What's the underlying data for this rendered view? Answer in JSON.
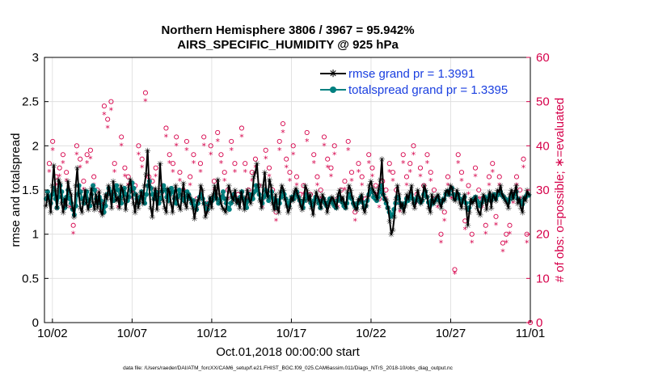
{
  "chart_data": {
    "type": "line",
    "title_line1": "Northern Hemisphere 3806 / 3967 = 95.942%",
    "title_line2": "AIRS_SPECIFIC_HUMIDITY @ 925 hPa",
    "ylabel_left": "rmse and totalspread",
    "ylabel_right": "# of obs: o=possible; ∗=evaluated",
    "xlabel": "Oct.01,2018 00:00:00 start",
    "footer": "data file: /Users/raeder/DAI/ATM_forcXX/CAM6_setup/f.e21.FHIST_BGC.f09_025.CAM6assim.011/Diags_NTrS_2018-10/obs_diag_output.nc",
    "x_tick_labels": [
      "10/02",
      "10/07",
      "10/12",
      "10/17",
      "10/22",
      "10/27",
      "11/01"
    ],
    "x_tick_days": [
      1,
      6,
      11,
      16,
      21,
      26,
      31
    ],
    "xlim": [
      0.5,
      31
    ],
    "ylim_left": [
      0,
      3
    ],
    "ylim_right": [
      0,
      60
    ],
    "y_left_tick_labels": [
      "0",
      "0.5",
      "1",
      "1.5",
      "2",
      "2.5",
      "3"
    ],
    "y_right_tick_labels": [
      "0",
      "10",
      "20",
      "30",
      "40",
      "50",
      "60"
    ],
    "grid": true,
    "legend_position": "top-right",
    "colors": {
      "rmse": "#000000",
      "spread": "#008080",
      "obs": "#d6004a",
      "legend_text": "#1a3fe0"
    },
    "series": [
      {
        "name": "rmse grand pr = 1.3991",
        "color": "#000000",
        "values": [
          1.32,
          1.45,
          1.38,
          1.25,
          1.55,
          1.78,
          1.5,
          1.3,
          1.62,
          1.58,
          1.35,
          1.25,
          1.4,
          1.32,
          1.6,
          1.5,
          1.45,
          1.3,
          1.2,
          1.55,
          1.75,
          1.45,
          1.3,
          1.25,
          1.38,
          1.5,
          1.35,
          1.28,
          1.4,
          1.52,
          1.36,
          1.28,
          1.45,
          1.3,
          1.48,
          1.26,
          1.22,
          1.35,
          1.45,
          1.4,
          1.55,
          1.45,
          1.3,
          1.6,
          1.48,
          1.38,
          1.42,
          1.3,
          1.55,
          1.5,
          1.4,
          1.28,
          1.42,
          1.55,
          1.62,
          1.48,
          1.35,
          1.25,
          1.45,
          1.3,
          1.38,
          1.48,
          1.35,
          1.55,
          1.68,
          1.95,
          1.55,
          1.3,
          1.2,
          1.4,
          1.52,
          1.28,
          1.45,
          1.8,
          1.5,
          1.38,
          1.3,
          1.25,
          1.52,
          1.48,
          1.35,
          1.25,
          1.42,
          1.55,
          1.4,
          1.32,
          1.28,
          1.45,
          1.58,
          1.35,
          1.3,
          1.45,
          1.42,
          1.38,
          1.3,
          1.18,
          1.28,
          1.38,
          1.4,
          1.55,
          1.5,
          1.35,
          1.2,
          1.25,
          1.32,
          1.42,
          1.3,
          1.45,
          1.55,
          1.4,
          1.62,
          1.45,
          1.35,
          1.3,
          1.28,
          1.25,
          1.4,
          1.55,
          1.48,
          1.42,
          1.38,
          1.5,
          1.35,
          1.4,
          1.3,
          1.48,
          1.38,
          1.28,
          1.42,
          1.5,
          1.4,
          1.35,
          1.45,
          1.65,
          1.7,
          1.8,
          1.55,
          1.38,
          1.3,
          1.55,
          1.7,
          1.48,
          1.42,
          1.62,
          1.55,
          1.35,
          1.28,
          1.45,
          1.3,
          1.25,
          1.48,
          1.55,
          1.5,
          1.4,
          1.32,
          1.25,
          1.3,
          1.42,
          1.38,
          1.48,
          1.52,
          1.45,
          1.4,
          1.32,
          1.28,
          1.4,
          1.55,
          1.5,
          1.38,
          1.45,
          1.3,
          1.22,
          1.35,
          1.48,
          1.42,
          1.38,
          1.3,
          1.45,
          1.4,
          1.35,
          1.25,
          1.32,
          1.38,
          1.42,
          1.4,
          1.35,
          1.3,
          1.45,
          1.5,
          1.38,
          1.42,
          1.35,
          1.3,
          1.48,
          1.55,
          1.5,
          1.42,
          1.35,
          1.3,
          1.28,
          1.4,
          1.38,
          1.45,
          1.3,
          1.25,
          1.32,
          1.42,
          1.55,
          1.6,
          1.52,
          1.48,
          1.45,
          1.4,
          1.52,
          1.62,
          1.85,
          1.45,
          1.4,
          1.38,
          1.3,
          1.15,
          1.0,
          1.05,
          1.2,
          1.4,
          1.55,
          1.45,
          1.3,
          1.35,
          1.25,
          1.32,
          1.45,
          1.4,
          1.48,
          1.55,
          1.35,
          1.3,
          1.38,
          1.5,
          1.42,
          1.35,
          1.4,
          1.55,
          1.5,
          1.42,
          1.3,
          1.25,
          1.45,
          1.35,
          1.38,
          1.42,
          1.45,
          1.35,
          1.3,
          1.4,
          1.38,
          1.48,
          1.5,
          1.45,
          1.55,
          1.52,
          1.4,
          1.38,
          1.5,
          1.45,
          1.35,
          1.3,
          1.4,
          1.45,
          1.3,
          1.1,
          1.25,
          1.4,
          1.35,
          1.38,
          1.42,
          1.3,
          1.25,
          1.22,
          1.35,
          1.45,
          1.4,
          1.28,
          1.38,
          1.48,
          1.3,
          1.45,
          1.42,
          1.38,
          1.5,
          1.48,
          1.55,
          1.45,
          1.42,
          1.38,
          1.35,
          1.3,
          1.45,
          1.5,
          1.4,
          1.48,
          1.55,
          1.35,
          1.4,
          1.3,
          1.25,
          1.42,
          1.38,
          1.5,
          1.45
        ]
      },
      {
        "name": "totalspread grand pr = 1.3395",
        "color": "#008080",
        "values": [
          1.4,
          1.48,
          1.42,
          1.35,
          1.45,
          1.52,
          1.4,
          1.3,
          1.42,
          1.55,
          1.48,
          1.38,
          1.3,
          1.42,
          1.5,
          1.4,
          1.35,
          1.28,
          1.22,
          1.32,
          1.45,
          1.55,
          1.48,
          1.4,
          1.35,
          1.42,
          1.48,
          1.38,
          1.32,
          1.45,
          1.55,
          1.5,
          1.4,
          1.35,
          1.42,
          1.38,
          1.3,
          1.25,
          1.32,
          1.45,
          1.52,
          1.48,
          1.4,
          1.38,
          1.45,
          1.55,
          1.5,
          1.42,
          1.35,
          1.48,
          1.52,
          1.45,
          1.38,
          1.42,
          1.5,
          1.58,
          1.52,
          1.45,
          1.4,
          1.35,
          1.42,
          1.48,
          1.4,
          1.35,
          1.45,
          1.55,
          1.6,
          1.52,
          1.45,
          1.4,
          1.48,
          1.42,
          1.35,
          1.4,
          1.48,
          1.55,
          1.5,
          1.42,
          1.38,
          1.45,
          1.52,
          1.48,
          1.4,
          1.35,
          1.42,
          1.5,
          1.45,
          1.4,
          1.38,
          1.42,
          1.48,
          1.45,
          1.4,
          1.35,
          1.38,
          1.32,
          1.28,
          1.35,
          1.42,
          1.45,
          1.4,
          1.35,
          1.3,
          1.28,
          1.35,
          1.4,
          1.38,
          1.42,
          1.45,
          1.4,
          1.35,
          1.38,
          1.42,
          1.48,
          1.4,
          1.35,
          1.3,
          1.28,
          1.35,
          1.42,
          1.45,
          1.4,
          1.38,
          1.35,
          1.42,
          1.48,
          1.4,
          1.36,
          1.3,
          1.38,
          1.45,
          1.42,
          1.4,
          1.48,
          1.55,
          1.5,
          1.45,
          1.4,
          1.35,
          1.42,
          1.5,
          1.45,
          1.38,
          1.42,
          1.48,
          1.4,
          1.35,
          1.3,
          1.38,
          1.35,
          1.42,
          1.48,
          1.45,
          1.4,
          1.35,
          1.32,
          1.38,
          1.42,
          1.4,
          1.45,
          1.48,
          1.42,
          1.38,
          1.35,
          1.3,
          1.38,
          1.45,
          1.42,
          1.4,
          1.35,
          1.32,
          1.38,
          1.42,
          1.4,
          1.35,
          1.3,
          1.38,
          1.4,
          1.35,
          1.32,
          1.36,
          1.4,
          1.38,
          1.35,
          1.32,
          1.3,
          1.38,
          1.42,
          1.4,
          1.36,
          1.32,
          1.3,
          1.35,
          1.42,
          1.45,
          1.4,
          1.35,
          1.32,
          1.3,
          1.35,
          1.38,
          1.42,
          1.36,
          1.3,
          1.32,
          1.38,
          1.45,
          1.5,
          1.48,
          1.42,
          1.4,
          1.38,
          1.42,
          1.48,
          1.55,
          1.45,
          1.4,
          1.35,
          1.3,
          1.25,
          1.2,
          1.22,
          1.28,
          1.35,
          1.42,
          1.4,
          1.35,
          1.32,
          1.3,
          1.35,
          1.4,
          1.38,
          1.42,
          1.45,
          1.4,
          1.35,
          1.38,
          1.42,
          1.4,
          1.36,
          1.38,
          1.45,
          1.48,
          1.42,
          1.36,
          1.32,
          1.38,
          1.35,
          1.38,
          1.4,
          1.42,
          1.38,
          1.35,
          1.38,
          1.4,
          1.45,
          1.48,
          1.45,
          1.5,
          1.52,
          1.45,
          1.4,
          1.42,
          1.45,
          1.4,
          1.36,
          1.38,
          1.42,
          1.35,
          1.28,
          1.3,
          1.36,
          1.38,
          1.4,
          1.42,
          1.38,
          1.35,
          1.32,
          1.36,
          1.4,
          1.42,
          1.38,
          1.4,
          1.44,
          1.38,
          1.42,
          1.45,
          1.4,
          1.44,
          1.46,
          1.48,
          1.44,
          1.42,
          1.4,
          1.38,
          1.36,
          1.4,
          1.44,
          1.42,
          1.45,
          1.48,
          1.4,
          1.38,
          1.36,
          1.34,
          1.4,
          1.42,
          1.45,
          1.44
        ]
      }
    ],
    "obs_series": [
      {
        "name": "possible",
        "marker": "o",
        "values": [
          36,
          41,
          33,
          35,
          38,
          34,
          28,
          22,
          40,
          37,
          32,
          38,
          39,
          33,
          30,
          27,
          49,
          46,
          50,
          36,
          28,
          42,
          35,
          33,
          30,
          31,
          40,
          37,
          52,
          33,
          32,
          35,
          29,
          31,
          44,
          38,
          36,
          42,
          34,
          30,
          41,
          33,
          38,
          28,
          36,
          42,
          27,
          40,
          32,
          43,
          38,
          34,
          30,
          41,
          36,
          29,
          44,
          36,
          30,
          34,
          37,
          31,
          28,
          39,
          35,
          30,
          25,
          41,
          45,
          37,
          34,
          40,
          33,
          29,
          31,
          43,
          29,
          38,
          33,
          30,
          42,
          37,
          35,
          40,
          28,
          30,
          32,
          41,
          34,
          25,
          36,
          33,
          28,
          38,
          35,
          31,
          28,
          32,
          30,
          36,
          34,
          30,
          27,
          38,
          33,
          36,
          40,
          29,
          35,
          31,
          38,
          34,
          30,
          28,
          20,
          25,
          33,
          30,
          12,
          38,
          34,
          23,
          31,
          20,
          35,
          30,
          28,
          22,
          33,
          36,
          24,
          33,
          18,
          20,
          22,
          29,
          33,
          30,
          37,
          20,
          0
        ]
      },
      {
        "name": "evaluated",
        "marker": "*",
        "values": [
          34,
          39,
          31,
          33,
          36,
          32,
          26,
          20,
          38,
          35,
          30,
          36,
          37,
          31,
          28,
          25,
          47,
          44,
          48,
          34,
          26,
          40,
          33,
          31,
          28,
          29,
          38,
          35,
          50,
          31,
          30,
          33,
          27,
          29,
          42,
          36,
          34,
          40,
          32,
          28,
          39,
          31,
          36,
          26,
          34,
          40,
          25,
          38,
          30,
          41,
          36,
          32,
          28,
          39,
          34,
          27,
          42,
          34,
          28,
          32,
          35,
          29,
          26,
          37,
          33,
          28,
          23,
          39,
          43,
          35,
          32,
          38,
          31,
          27,
          29,
          41,
          27,
          36,
          31,
          28,
          40,
          35,
          33,
          38,
          26,
          28,
          30,
          39,
          32,
          23,
          34,
          31,
          26,
          36,
          33,
          29,
          26,
          30,
          28,
          34,
          32,
          28,
          25,
          36,
          31,
          34,
          38,
          27,
          33,
          29,
          36,
          32,
          28,
          26,
          18,
          23,
          31,
          28,
          11,
          36,
          32,
          21,
          29,
          18,
          33,
          28,
          26,
          20,
          31,
          34,
          22,
          31,
          16,
          18,
          20,
          27,
          31,
          28,
          35,
          18,
          0
        ]
      }
    ]
  }
}
